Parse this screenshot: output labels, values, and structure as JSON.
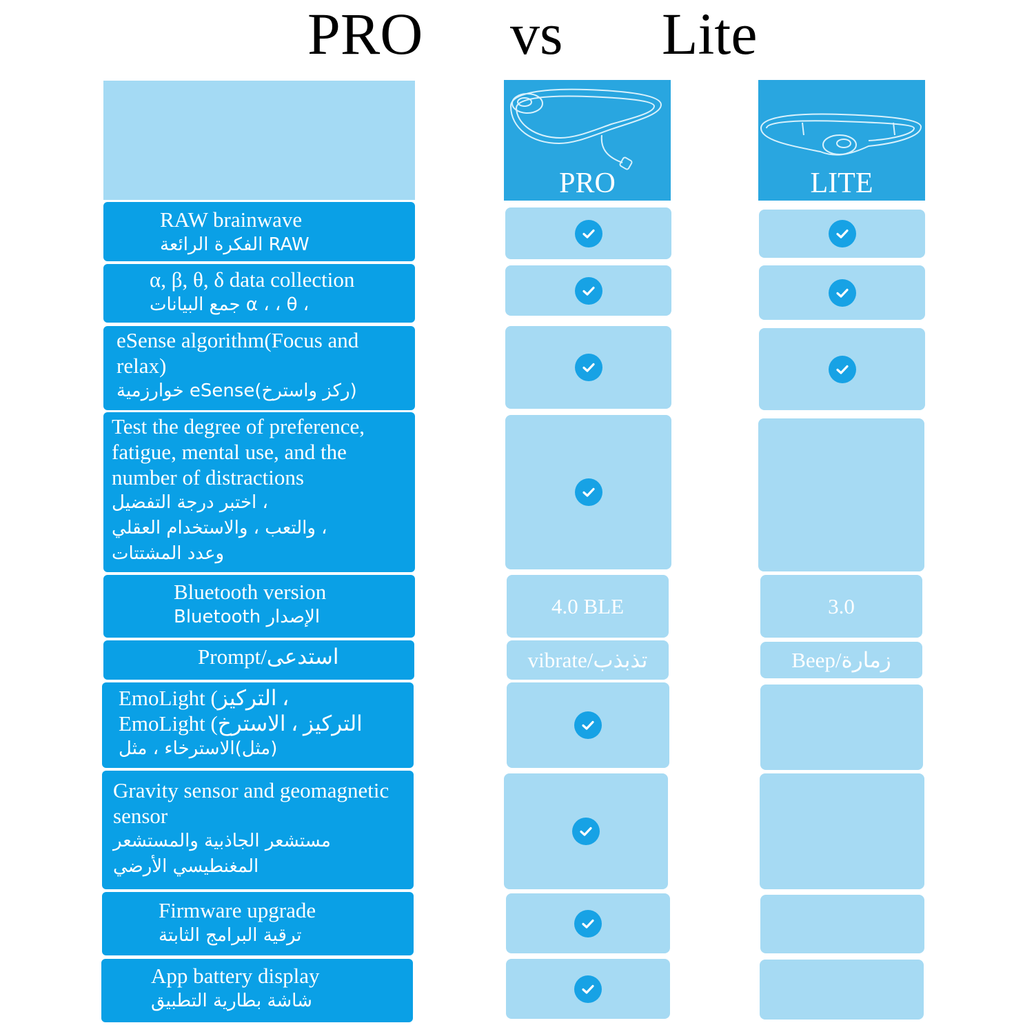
{
  "title": {
    "left": "PRO",
    "middle": "vs",
    "right": "Lite"
  },
  "products": [
    {
      "name": "PRO"
    },
    {
      "name": "LITE"
    }
  ],
  "icons": {
    "check": "check-circle-icon",
    "headset": "headband-device-icon"
  },
  "colors": {
    "feature_bg": "#0aa0e6",
    "cell_bg": "#a6daf3",
    "header_bg": "#29a6e0",
    "check": "#17a2e5"
  },
  "features": [
    {
      "lines": [
        "RAW brainwave",
        "الفكرة الرائعة RAW"
      ],
      "pro": true,
      "lite": true
    },
    {
      "lines": [
        "α, β, θ, δ data collection",
        "جمع البيانات α ، ، θ ،"
      ],
      "pro": true,
      "lite": true
    },
    {
      "lines": [
        "eSense algorithm(Focus and",
        "relax)",
        "خوارزمية eSense(ركز واسترخ)"
      ],
      "pro": true,
      "lite": true
    },
    {
      "lines": [
        "Test the degree of preference,",
        "fatigue, mental use, and the",
        "number of distractions",
        "اختبر درجة التفضيل ،",
        "والتعب ، والاستخدام العقلي ،",
        "وعدد المشتتات"
      ],
      "pro": true,
      "lite": false
    },
    {
      "lines": [
        "Bluetooth version",
        "Bluetooth الإصدار"
      ],
      "pro_text": "4.0 BLE",
      "lite_text": "3.0"
    },
    {
      "lines": [
        "Prompt/استدعى"
      ],
      "pro_text": "vibrate/تذبذب",
      "lite_text": "Beep/زمارة"
    },
    {
      "lines": [
        "EmoLight (التركيز ،",
        "EmoLight (التركيز ، الاسترخ",
        "مثل)الاسترخاء ، مثل)"
      ],
      "pro": true,
      "lite": false
    },
    {
      "lines": [
        "Gravity sensor and geomagnetic",
        "sensor",
        "مستشعر الجاذبية والمستشعر",
        "المغنطيسي الأرضي"
      ],
      "pro": true,
      "lite": false
    },
    {
      "lines": [
        "Firmware upgrade",
        "ترقية البرامج الثابتة"
      ],
      "pro": true,
      "lite": false
    },
    {
      "lines": [
        "App battery display",
        "شاشة بطارية التطبيق"
      ],
      "pro": true,
      "lite": false
    }
  ]
}
